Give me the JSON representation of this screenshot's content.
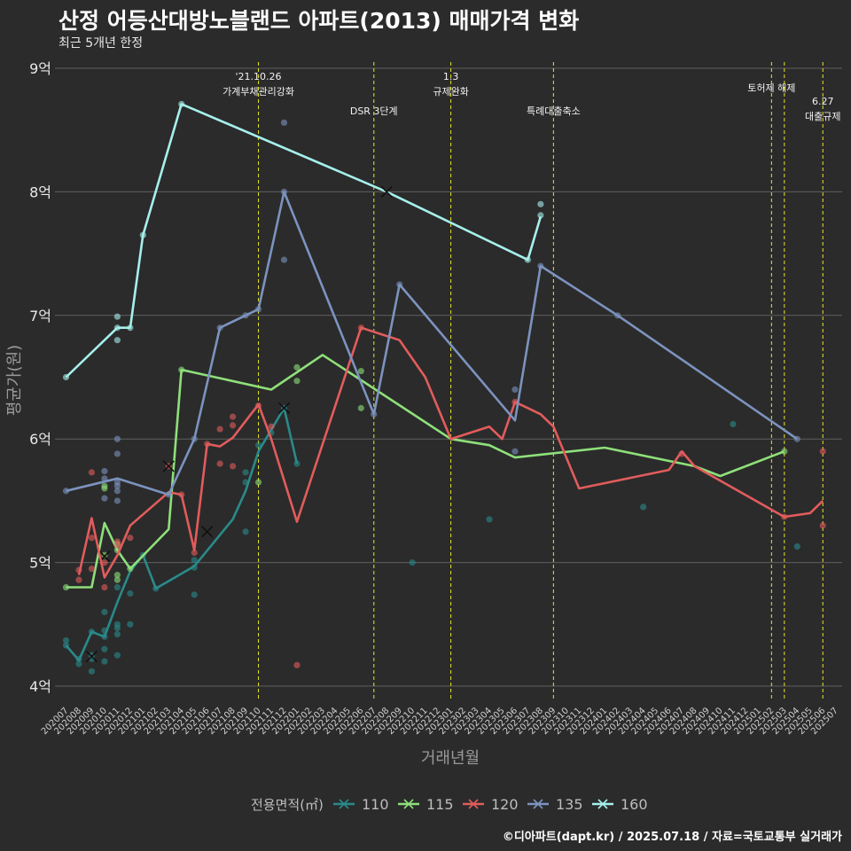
{
  "chart_data": {
    "type": "line",
    "title": "산정 어등산대방노블랜드 아파트(2013) 매매가격 변화",
    "subtitle": "최근 5개년 한정",
    "xlabel": "거래년월",
    "ylabel": "평균가(원)",
    "ylim": [
      3.9,
      9.05
    ],
    "y_ticks": [
      {
        "value": 4,
        "label": "4억"
      },
      {
        "value": 5,
        "label": "5억"
      },
      {
        "value": 6,
        "label": "6억"
      },
      {
        "value": 7,
        "label": "7억"
      },
      {
        "value": 8,
        "label": "8억"
      },
      {
        "value": 9,
        "label": "9억"
      }
    ],
    "x_categories": [
      "202007",
      "202008",
      "202009",
      "202010",
      "202011",
      "202012",
      "202101",
      "202102",
      "202103",
      "202104",
      "202105",
      "202106",
      "202107",
      "202108",
      "202109",
      "202110",
      "202111",
      "202112",
      "202201",
      "202202",
      "202203",
      "202204",
      "202205",
      "202206",
      "202207",
      "202208",
      "202209",
      "202210",
      "202211",
      "202212",
      "202301",
      "202302",
      "202303",
      "202304",
      "202305",
      "202306",
      "202307",
      "202308",
      "202309",
      "202310",
      "202311",
      "202312",
      "202401",
      "202402",
      "202403",
      "202404",
      "202405",
      "202406",
      "202407",
      "202408",
      "202409",
      "202410",
      "202411",
      "202412",
      "202501",
      "202502",
      "202503",
      "202504",
      "202505",
      "202506",
      "202507"
    ],
    "grid": true,
    "legend_title": "전용면적(㎡)",
    "legend_position": "bottom",
    "events": [
      {
        "x": "202110",
        "label": "'21.10.26\n가계부채관리강화"
      },
      {
        "x": "202207",
        "label": "DSR 3단계"
      },
      {
        "x": "202301",
        "label": "1.3\n규제완화"
      },
      {
        "x": "202309",
        "label": "특례대출축소"
      },
      {
        "x": "202502",
        "label": "토허제 해제"
      },
      {
        "x": "202503",
        "label": ""
      },
      {
        "x": "202506",
        "label": "6.27\n대출규제"
      }
    ],
    "series": [
      {
        "name": "110",
        "color": "#2a8a8a",
        "line": [
          [
            "202007",
            4.33
          ],
          [
            "202008",
            4.21
          ],
          [
            "202009",
            4.44
          ],
          [
            "202010",
            4.4
          ],
          [
            "202011",
            4.68
          ],
          [
            "202012",
            4.93
          ],
          [
            "202101",
            5.06
          ],
          [
            "202102",
            4.79
          ],
          [
            "202105",
            4.97
          ],
          [
            "202108",
            5.35
          ],
          [
            "202109",
            5.58
          ],
          [
            "202110",
            5.9
          ],
          [
            "202112",
            6.25
          ],
          [
            "202201",
            5.8
          ]
        ],
        "points": [
          [
            "202007",
            4.37
          ],
          [
            "202007",
            4.33
          ],
          [
            "202008",
            4.18
          ],
          [
            "202008",
            4.22
          ],
          [
            "202009",
            4.25
          ],
          [
            "202009",
            4.12
          ],
          [
            "202009",
            4.22
          ],
          [
            "202009",
            4.44
          ],
          [
            "202010",
            4.2
          ],
          [
            "202010",
            4.4
          ],
          [
            "202010",
            4.6
          ],
          [
            "202010",
            4.3
          ],
          [
            "202010",
            4.45
          ],
          [
            "202011",
            4.5
          ],
          [
            "202011",
            4.47
          ],
          [
            "202011",
            4.42
          ],
          [
            "202011",
            4.8
          ],
          [
            "202011",
            4.25
          ],
          [
            "202012",
            4.75
          ],
          [
            "202012",
            4.5
          ],
          [
            "202101",
            5.06
          ],
          [
            "202102",
            4.79
          ],
          [
            "202105",
            4.74
          ],
          [
            "202105",
            4.96
          ],
          [
            "202105",
            5.02
          ],
          [
            "202109",
            5.25
          ],
          [
            "202109",
            5.65
          ],
          [
            "202109",
            5.73
          ],
          [
            "202110",
            5.95
          ],
          [
            "202111",
            6.05
          ],
          [
            "202112",
            6.25
          ],
          [
            "202201",
            5.8
          ],
          [
            "202210",
            5.0
          ],
          [
            "202304",
            5.35
          ],
          [
            "202404",
            5.45
          ],
          [
            "202411",
            6.12
          ],
          [
            "202504",
            5.13
          ]
        ],
        "marks": [
          [
            "202009",
            4.24
          ],
          [
            "202106",
            5.25
          ],
          [
            "202112",
            6.25
          ]
        ]
      },
      {
        "name": "115",
        "color": "#8ee07a",
        "line": [
          [
            "202007",
            4.8
          ],
          [
            "202009",
            4.8
          ],
          [
            "202010",
            5.32
          ],
          [
            "202011",
            5.1
          ],
          [
            "202012",
            4.95
          ],
          [
            "202103",
            5.27
          ],
          [
            "202104",
            6.56
          ],
          [
            "202111",
            6.4
          ],
          [
            "202203",
            6.68
          ],
          [
            "202301",
            6.0
          ],
          [
            "202304",
            5.95
          ],
          [
            "202306",
            5.85
          ],
          [
            "202401",
            5.93
          ],
          [
            "202408",
            5.78
          ],
          [
            "202410",
            5.7
          ],
          [
            "202503",
            5.9
          ]
        ],
        "points": [
          [
            "202007",
            4.8
          ],
          [
            "202010",
            5.62
          ],
          [
            "202010",
            5.6
          ],
          [
            "202010",
            5.06
          ],
          [
            "202011",
            5.15
          ],
          [
            "202011",
            4.9
          ],
          [
            "202011",
            4.86
          ],
          [
            "202011",
            5.1
          ],
          [
            "202012",
            4.95
          ],
          [
            "202104",
            6.56
          ],
          [
            "202110",
            5.65
          ],
          [
            "202201",
            6.58
          ],
          [
            "202201",
            6.47
          ],
          [
            "202206",
            6.55
          ],
          [
            "202206",
            6.25
          ],
          [
            "202503",
            5.9
          ]
        ],
        "marks": [
          [
            "202010",
            5.05
          ]
        ]
      },
      {
        "name": "120",
        "color": "#e25c5c",
        "line": [
          [
            "202008",
            4.9
          ],
          [
            "202009",
            5.36
          ],
          [
            "202010",
            4.88
          ],
          [
            "202011",
            5.06
          ],
          [
            "202012",
            5.3
          ],
          [
            "202103",
            5.57
          ],
          [
            "202104",
            5.55
          ],
          [
            "202105",
            5.1
          ],
          [
            "202106",
            5.96
          ],
          [
            "202107",
            5.94
          ],
          [
            "202108",
            6.01
          ],
          [
            "202110",
            6.28
          ],
          [
            "202111",
            6.0
          ],
          [
            "202201",
            5.33
          ],
          [
            "202206",
            6.9
          ],
          [
            "202209",
            6.8
          ],
          [
            "202211",
            6.5
          ],
          [
            "202301",
            6.0
          ],
          [
            "202304",
            6.1
          ],
          [
            "202305",
            6.0
          ],
          [
            "202306",
            6.3
          ],
          [
            "202308",
            6.2
          ],
          [
            "202309",
            6.1
          ],
          [
            "202311",
            5.6
          ],
          [
            "202406",
            5.75
          ],
          [
            "202407",
            5.9
          ],
          [
            "202408",
            5.78
          ],
          [
            "202503",
            5.37
          ],
          [
            "202505",
            5.4
          ],
          [
            "202506",
            5.5
          ]
        ],
        "points": [
          [
            "202008",
            4.94
          ],
          [
            "202008",
            4.86
          ],
          [
            "202009",
            5.73
          ],
          [
            "202009",
            5.2
          ],
          [
            "202009",
            4.95
          ],
          [
            "202010",
            4.8
          ],
          [
            "202010",
            5.0
          ],
          [
            "202011",
            5.17
          ],
          [
            "202011",
            5.14
          ],
          [
            "202012",
            5.2
          ],
          [
            "202103",
            5.78
          ],
          [
            "202104",
            5.55
          ],
          [
            "202105",
            5.08
          ],
          [
            "202106",
            5.96
          ],
          [
            "202107",
            6.08
          ],
          [
            "202107",
            5.8
          ],
          [
            "202108",
            6.18
          ],
          [
            "202108",
            6.11
          ],
          [
            "202108",
            5.78
          ],
          [
            "202110",
            6.27
          ],
          [
            "202111",
            6.1
          ],
          [
            "202201",
            4.17
          ],
          [
            "202206",
            6.9
          ],
          [
            "202306",
            6.3
          ],
          [
            "202407",
            5.88
          ],
          [
            "202503",
            5.37
          ],
          [
            "202506",
            5.9
          ],
          [
            "202506",
            5.3
          ]
        ],
        "marks": [
          [
            "202103",
            5.78
          ]
        ]
      },
      {
        "name": "135",
        "color": "#7c93bf",
        "line": [
          [
            "202007",
            5.58
          ],
          [
            "202011",
            5.68
          ],
          [
            "202103",
            5.55
          ],
          [
            "202105",
            6.0
          ],
          [
            "202107",
            6.9
          ],
          [
            "202109",
            7.0
          ],
          [
            "202110",
            7.05
          ],
          [
            "202112",
            8.0
          ],
          [
            "202207",
            6.2
          ],
          [
            "202209",
            7.25
          ],
          [
            "202306",
            6.15
          ],
          [
            "202308",
            7.4
          ],
          [
            "202402",
            7.0
          ],
          [
            "202504",
            6.0
          ]
        ],
        "points": [
          [
            "202007",
            5.58
          ],
          [
            "202010",
            5.74
          ],
          [
            "202010",
            5.52
          ],
          [
            "202010",
            5.68
          ],
          [
            "202011",
            6.0
          ],
          [
            "202011",
            5.88
          ],
          [
            "202011",
            5.65
          ],
          [
            "202011",
            5.62
          ],
          [
            "202011",
            5.58
          ],
          [
            "202011",
            5.5
          ],
          [
            "202103",
            5.55
          ],
          [
            "202105",
            6.0
          ],
          [
            "202107",
            6.9
          ],
          [
            "202109",
            7.0
          ],
          [
            "202110",
            7.05
          ],
          [
            "202112",
            8.56
          ],
          [
            "202112",
            7.45
          ],
          [
            "202112",
            8.0
          ],
          [
            "202207",
            6.2
          ],
          [
            "202209",
            7.25
          ],
          [
            "202306",
            6.4
          ],
          [
            "202306",
            5.9
          ],
          [
            "202308",
            7.4
          ],
          [
            "202402",
            7.0
          ],
          [
            "202504",
            6.0
          ]
        ],
        "marks": []
      },
      {
        "name": "160",
        "color": "#a6f0ec",
        "line": [
          [
            "202007",
            6.5
          ],
          [
            "202011",
            6.9
          ],
          [
            "202012",
            6.9
          ],
          [
            "202101",
            7.65
          ],
          [
            "202104",
            8.71
          ],
          [
            "202208",
            8.0
          ],
          [
            "202307",
            7.45
          ],
          [
            "202308",
            7.8
          ]
        ],
        "points": [
          [
            "202007",
            6.5
          ],
          [
            "202011",
            6.99
          ],
          [
            "202011",
            6.8
          ],
          [
            "202011",
            6.9
          ],
          [
            "202012",
            6.9
          ],
          [
            "202101",
            7.65
          ],
          [
            "202104",
            8.71
          ],
          [
            "202307",
            7.45
          ],
          [
            "202308",
            7.9
          ],
          [
            "202308",
            7.81
          ]
        ],
        "marks": [
          [
            "202208",
            8.0
          ]
        ]
      }
    ]
  },
  "footer": "©디아파트(dapt.kr) / 2025.07.18 / 자료=국토교통부 실거래가"
}
